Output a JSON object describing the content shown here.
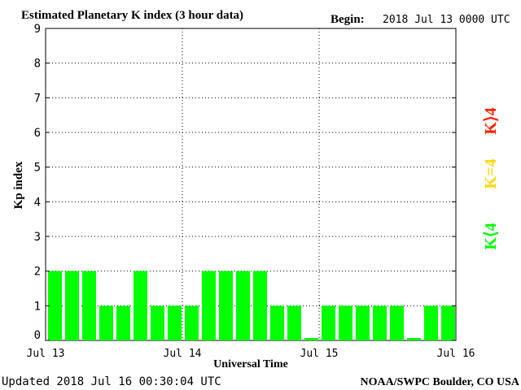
{
  "header": {
    "title": "Estimated Planetary K index (3 hour data)",
    "begin_label": "Begin:",
    "begin_value": "2018 Jul 13 0000 UTC"
  },
  "footer": {
    "updated": "Updated 2018 Jul 16 00:30:04 UTC",
    "source": "NOAA/SWPC Boulder, CO USA"
  },
  "legend": {
    "high": "K⟩4",
    "equal": "K=4",
    "low": "K⟨4"
  },
  "colors": {
    "bar": "#00ff00",
    "high": "#ff2000",
    "equal": "#ffd700",
    "low": "#00ff00",
    "grid": "#000000",
    "background": "#ffffff"
  },
  "chart_data": {
    "type": "bar",
    "title": "Estimated Planetary K index (3 hour data)",
    "xlabel": "Universal Time",
    "ylabel": "Kp index",
    "ylim": [
      0,
      9
    ],
    "yticks": [
      "0",
      "1",
      "2",
      "3",
      "4",
      "5",
      "6",
      "7",
      "8",
      "9"
    ],
    "xticks": [
      "Jul 13",
      "Jul 14",
      "Jul 15",
      "Jul 16"
    ],
    "grid": true,
    "categories": [
      "Jul 13 00",
      "Jul 13 03",
      "Jul 13 06",
      "Jul 13 09",
      "Jul 13 12",
      "Jul 13 15",
      "Jul 13 18",
      "Jul 13 21",
      "Jul 14 00",
      "Jul 14 03",
      "Jul 14 06",
      "Jul 14 09",
      "Jul 14 12",
      "Jul 14 15",
      "Jul 14 18",
      "Jul 14 21",
      "Jul 15 00",
      "Jul 15 03",
      "Jul 15 06",
      "Jul 15 09",
      "Jul 15 12",
      "Jul 15 15",
      "Jul 15 18",
      "Jul 15 21"
    ],
    "values": [
      2,
      2,
      2,
      1,
      1,
      2,
      1,
      1,
      1,
      2,
      2,
      2,
      2,
      1,
      1,
      0,
      1,
      1,
      1,
      1,
      1,
      0,
      1,
      1
    ]
  }
}
